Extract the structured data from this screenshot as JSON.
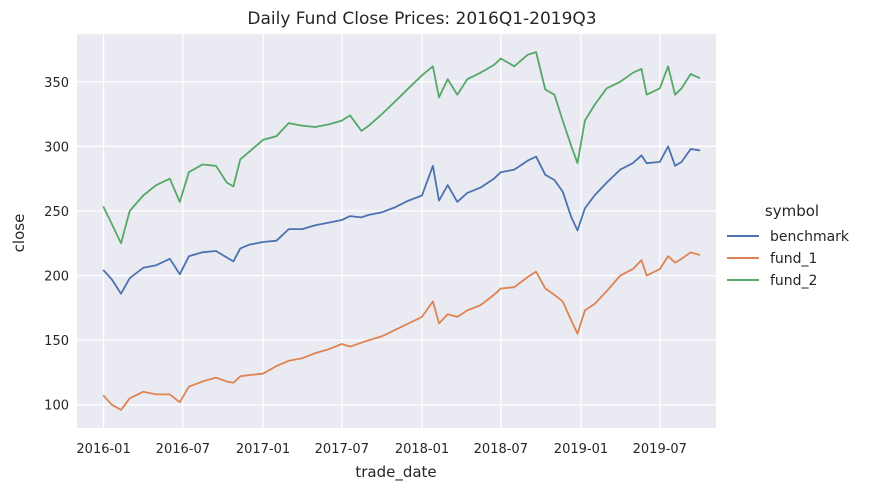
{
  "chart_data": {
    "type": "line",
    "title": "Daily Fund Close Prices: 2016Q1-2019Q3",
    "xlabel": "trade_date",
    "ylabel": "close",
    "x_tick_labels": [
      "2016-01",
      "2016-07",
      "2017-01",
      "2017-07",
      "2018-01",
      "2018-07",
      "2019-01",
      "2019-07"
    ],
    "y_ticks": [
      100,
      150,
      200,
      250,
      300,
      350
    ],
    "ylim": [
      82,
      387
    ],
    "xlim": [
      "2015-11-01",
      "2019-11-07"
    ],
    "grid": true,
    "legend": {
      "title": "symbol",
      "placement": "right"
    },
    "x": [
      "2016-01-01",
      "2016-01-20",
      "2016-02-10",
      "2016-03-01",
      "2016-04-01",
      "2016-05-01",
      "2016-06-01",
      "2016-06-24",
      "2016-07-15",
      "2016-08-15",
      "2016-09-15",
      "2016-10-10",
      "2016-10-25",
      "2016-11-10",
      "2016-12-01",
      "2017-01-01",
      "2017-02-01",
      "2017-03-01",
      "2017-04-01",
      "2017-05-01",
      "2017-06-01",
      "2017-07-01",
      "2017-07-20",
      "2017-08-15",
      "2017-09-01",
      "2017-10-01",
      "2017-11-01",
      "2017-12-01",
      "2018-01-01",
      "2018-01-26",
      "2018-02-09",
      "2018-03-01",
      "2018-03-23",
      "2018-04-15",
      "2018-05-15",
      "2018-06-15",
      "2018-07-01",
      "2018-08-01",
      "2018-09-01",
      "2018-09-20",
      "2018-10-11",
      "2018-11-01",
      "2018-11-20",
      "2018-12-10",
      "2018-12-24",
      "2019-01-10",
      "2019-02-01",
      "2019-03-01",
      "2019-04-01",
      "2019-04-30",
      "2019-05-20",
      "2019-06-01",
      "2019-07-01",
      "2019-07-20",
      "2019-08-05",
      "2019-08-20",
      "2019-09-10",
      "2019-09-30"
    ],
    "series": [
      {
        "name": "benchmark",
        "color": "#4c72b0",
        "values": [
          204,
          197,
          186,
          198,
          206,
          208,
          213,
          201,
          215,
          218,
          219,
          214,
          211,
          221,
          224,
          226,
          227,
          236,
          236,
          239,
          241,
          243,
          246,
          245,
          247,
          249,
          253,
          258,
          262,
          285,
          258,
          270,
          257,
          264,
          268,
          275,
          280,
          282,
          289,
          292,
          278,
          274,
          265,
          245,
          235,
          252,
          262,
          272,
          282,
          287,
          293,
          287,
          288,
          300,
          285,
          288,
          298,
          297
        ]
      },
      {
        "name": "fund_1",
        "color": "#dd8452",
        "values": [
          107,
          100,
          96,
          105,
          110,
          108,
          108,
          102,
          114,
          118,
          121,
          118,
          117,
          122,
          123,
          124,
          130,
          134,
          136,
          140,
          143,
          147,
          145,
          148,
          150,
          153,
          158,
          163,
          168,
          180,
          163,
          170,
          168,
          173,
          177,
          185,
          190,
          191,
          199,
          203,
          190,
          185,
          180,
          165,
          155,
          173,
          178,
          188,
          200,
          205,
          212,
          200,
          205,
          215,
          210,
          213,
          218,
          216
        ]
      },
      {
        "name": "fund_2",
        "color": "#55a868",
        "values": [
          253,
          240,
          225,
          250,
          262,
          270,
          275,
          257,
          280,
          286,
          285,
          272,
          269,
          290,
          296,
          305,
          308,
          318,
          316,
          315,
          317,
          320,
          324,
          312,
          316,
          325,
          335,
          345,
          355,
          362,
          338,
          352,
          340,
          352,
          357,
          363,
          368,
          362,
          371,
          373,
          344,
          340,
          320,
          300,
          287,
          320,
          332,
          345,
          350,
          357,
          360,
          340,
          345,
          362,
          340,
          345,
          356,
          353
        ]
      }
    ]
  }
}
